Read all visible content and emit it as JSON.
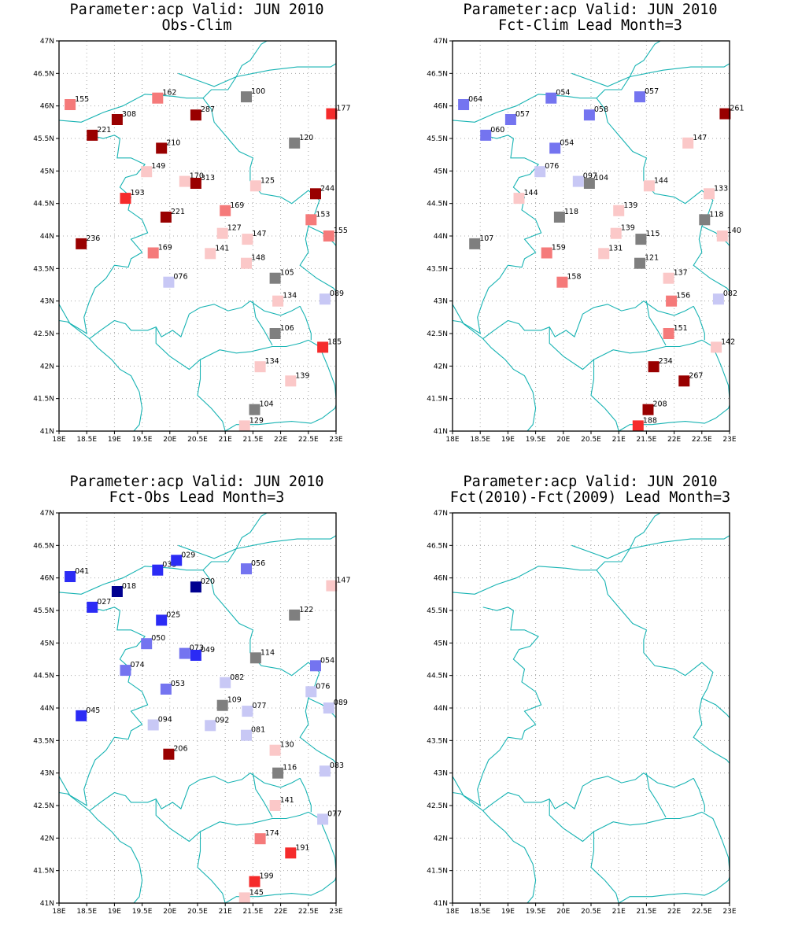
{
  "coastline_color": "#17b3b3",
  "color_scale": {
    "dark_blue": "#000090",
    "blue": "#2b2bf5",
    "mid_blue": "#7474f0",
    "light_blue": "#c8c8f5",
    "gray": "#7f7f7f",
    "light_red": "#fbc8c8",
    "mid_red": "#f57a7a",
    "red": "#f52b2b",
    "dark_red": "#990000"
  },
  "axes": {
    "lon_ticks": [
      "18E",
      "18.5E",
      "19E",
      "19.5E",
      "20E",
      "20.5E",
      "21E",
      "21.5E",
      "22E",
      "22.5E",
      "23E"
    ],
    "lat_ticks": [
      "41N",
      "41.5N",
      "42N",
      "42.5N",
      "43N",
      "43.5N",
      "44N",
      "44.5N",
      "45N",
      "45.5N",
      "46N",
      "46.5N",
      "47N"
    ],
    "lon_range": [
      18,
      23
    ],
    "lat_range": [
      41,
      47
    ]
  },
  "panels": [
    {
      "title1": "Parameter:acp Valid: JUN 2010",
      "title2": "Obs-Clim",
      "stations": [
        {
          "lon": 18.2,
          "lat": 46.02,
          "label": "155",
          "color": "mid_red"
        },
        {
          "lon": 19.78,
          "lat": 46.12,
          "label": "162",
          "color": "mid_red"
        },
        {
          "lon": 21.38,
          "lat": 46.14,
          "label": "100",
          "color": "gray"
        },
        {
          "lon": 22.92,
          "lat": 45.88,
          "label": "177",
          "color": "red"
        },
        {
          "lon": 19.05,
          "lat": 45.79,
          "label": "308",
          "color": "dark_red"
        },
        {
          "lon": 20.47,
          "lat": 45.86,
          "label": "287",
          "color": "dark_red"
        },
        {
          "lon": 18.6,
          "lat": 45.55,
          "label": "221",
          "color": "dark_red"
        },
        {
          "lon": 19.85,
          "lat": 45.35,
          "label": "210",
          "color": "dark_red"
        },
        {
          "lon": 22.25,
          "lat": 45.43,
          "label": "120",
          "color": "gray"
        },
        {
          "lon": 19.58,
          "lat": 44.99,
          "label": "149",
          "color": "light_red"
        },
        {
          "lon": 20.27,
          "lat": 44.84,
          "label": "170",
          "color": "light_red"
        },
        {
          "lon": 20.47,
          "lat": 44.81,
          "label": "313",
          "color": "dark_red"
        },
        {
          "lon": 21.55,
          "lat": 44.77,
          "label": "125",
          "color": "light_red"
        },
        {
          "lon": 22.63,
          "lat": 44.65,
          "label": "244",
          "color": "dark_red"
        },
        {
          "lon": 19.2,
          "lat": 44.58,
          "label": "193",
          "color": "red"
        },
        {
          "lon": 19.93,
          "lat": 44.29,
          "label": "221",
          "color": "dark_red"
        },
        {
          "lon": 21.0,
          "lat": 44.39,
          "label": "169",
          "color": "mid_red"
        },
        {
          "lon": 22.55,
          "lat": 44.25,
          "label": "153",
          "color": "mid_red"
        },
        {
          "lon": 22.87,
          "lat": 44.0,
          "label": "155",
          "color": "mid_red"
        },
        {
          "lon": 20.95,
          "lat": 44.04,
          "label": "127",
          "color": "light_red"
        },
        {
          "lon": 21.4,
          "lat": 43.95,
          "label": "147",
          "color": "light_red"
        },
        {
          "lon": 18.4,
          "lat": 43.88,
          "label": "236",
          "color": "dark_red"
        },
        {
          "lon": 19.7,
          "lat": 43.74,
          "label": "169",
          "color": "mid_red"
        },
        {
          "lon": 20.73,
          "lat": 43.73,
          "label": "141",
          "color": "light_red"
        },
        {
          "lon": 21.38,
          "lat": 43.58,
          "label": "148",
          "color": "light_red"
        },
        {
          "lon": 19.98,
          "lat": 43.29,
          "label": "076",
          "color": "light_blue"
        },
        {
          "lon": 21.9,
          "lat": 43.35,
          "label": "105",
          "color": "gray"
        },
        {
          "lon": 21.95,
          "lat": 43.0,
          "label": "134",
          "color": "light_red"
        },
        {
          "lon": 22.8,
          "lat": 43.03,
          "label": "089",
          "color": "light_blue"
        },
        {
          "lon": 21.9,
          "lat": 42.5,
          "label": "106",
          "color": "gray"
        },
        {
          "lon": 22.76,
          "lat": 42.29,
          "label": "185",
          "color": "red"
        },
        {
          "lon": 21.63,
          "lat": 41.99,
          "label": "134",
          "color": "light_red"
        },
        {
          "lon": 22.18,
          "lat": 41.77,
          "label": "139",
          "color": "light_red"
        },
        {
          "lon": 21.53,
          "lat": 41.33,
          "label": "104",
          "color": "gray"
        },
        {
          "lon": 21.35,
          "lat": 41.08,
          "label": "129",
          "color": "light_red"
        }
      ]
    },
    {
      "title1": "Parameter:acp Valid: JUN 2010",
      "title2": "Fct-Clim Lead Month=3",
      "stations": [
        {
          "lon": 18.2,
          "lat": 46.02,
          "label": "064",
          "color": "mid_blue"
        },
        {
          "lon": 19.78,
          "lat": 46.12,
          "label": "054",
          "color": "mid_blue"
        },
        {
          "lon": 21.38,
          "lat": 46.14,
          "label": "057",
          "color": "mid_blue"
        },
        {
          "lon": 22.92,
          "lat": 45.88,
          "label": "261",
          "color": "dark_red"
        },
        {
          "lon": 19.05,
          "lat": 45.79,
          "label": "057",
          "color": "mid_blue"
        },
        {
          "lon": 20.47,
          "lat": 45.86,
          "label": "058",
          "color": "mid_blue"
        },
        {
          "lon": 18.6,
          "lat": 45.55,
          "label": "060",
          "color": "mid_blue"
        },
        {
          "lon": 19.85,
          "lat": 45.35,
          "label": "054",
          "color": "mid_blue"
        },
        {
          "lon": 22.25,
          "lat": 45.43,
          "label": "147",
          "color": "light_red"
        },
        {
          "lon": 19.58,
          "lat": 44.99,
          "label": "076",
          "color": "light_blue"
        },
        {
          "lon": 20.27,
          "lat": 44.84,
          "label": "097",
          "color": "light_blue"
        },
        {
          "lon": 20.47,
          "lat": 44.81,
          "label": "104",
          "color": "gray"
        },
        {
          "lon": 21.55,
          "lat": 44.77,
          "label": "144",
          "color": "light_red"
        },
        {
          "lon": 22.63,
          "lat": 44.65,
          "label": "133",
          "color": "light_red"
        },
        {
          "lon": 19.2,
          "lat": 44.58,
          "label": "144",
          "color": "light_red"
        },
        {
          "lon": 19.93,
          "lat": 44.29,
          "label": "118",
          "color": "gray"
        },
        {
          "lon": 21.0,
          "lat": 44.39,
          "label": "139",
          "color": "light_red"
        },
        {
          "lon": 22.55,
          "lat": 44.25,
          "label": "118",
          "color": "gray"
        },
        {
          "lon": 22.87,
          "lat": 44.0,
          "label": "140",
          "color": "light_red"
        },
        {
          "lon": 20.95,
          "lat": 44.04,
          "label": "139",
          "color": "light_red"
        },
        {
          "lon": 21.4,
          "lat": 43.95,
          "label": "115",
          "color": "gray"
        },
        {
          "lon": 18.4,
          "lat": 43.88,
          "label": "107",
          "color": "gray"
        },
        {
          "lon": 19.7,
          "lat": 43.74,
          "label": "159",
          "color": "mid_red"
        },
        {
          "lon": 20.73,
          "lat": 43.73,
          "label": "131",
          "color": "light_red"
        },
        {
          "lon": 21.38,
          "lat": 43.58,
          "label": "121",
          "color": "gray"
        },
        {
          "lon": 19.98,
          "lat": 43.29,
          "label": "158",
          "color": "mid_red"
        },
        {
          "lon": 21.9,
          "lat": 43.35,
          "label": "137",
          "color": "light_red"
        },
        {
          "lon": 21.95,
          "lat": 43.0,
          "label": "156",
          "color": "mid_red"
        },
        {
          "lon": 22.8,
          "lat": 43.03,
          "label": "082",
          "color": "light_blue"
        },
        {
          "lon": 21.9,
          "lat": 42.5,
          "label": "151",
          "color": "mid_red"
        },
        {
          "lon": 22.76,
          "lat": 42.29,
          "label": "142",
          "color": "light_red"
        },
        {
          "lon": 21.63,
          "lat": 41.99,
          "label": "234",
          "color": "dark_red"
        },
        {
          "lon": 22.18,
          "lat": 41.77,
          "label": "267",
          "color": "dark_red"
        },
        {
          "lon": 21.53,
          "lat": 41.33,
          "label": "208",
          "color": "dark_red"
        },
        {
          "lon": 21.35,
          "lat": 41.08,
          "label": "188",
          "color": "red"
        }
      ]
    },
    {
      "title1": "Parameter:acp Valid: JUN 2010",
      "title2": "Fct-Obs Lead Month=3",
      "stations": [
        {
          "lon": 18.2,
          "lat": 46.02,
          "label": "041",
          "color": "blue"
        },
        {
          "lon": 19.78,
          "lat": 46.12,
          "label": "033",
          "color": "blue"
        },
        {
          "lon": 20.12,
          "lat": 46.27,
          "label": "029",
          "color": "blue"
        },
        {
          "lon": 21.38,
          "lat": 46.14,
          "label": "056",
          "color": "mid_blue"
        },
        {
          "lon": 22.92,
          "lat": 45.88,
          "label": "147",
          "color": "light_red"
        },
        {
          "lon": 19.05,
          "lat": 45.79,
          "label": "018",
          "color": "dark_blue"
        },
        {
          "lon": 20.47,
          "lat": 45.86,
          "label": "020",
          "color": "dark_blue"
        },
        {
          "lon": 18.6,
          "lat": 45.55,
          "label": "027",
          "color": "blue"
        },
        {
          "lon": 19.85,
          "lat": 45.35,
          "label": "025",
          "color": "blue"
        },
        {
          "lon": 22.25,
          "lat": 45.43,
          "label": "122",
          "color": "gray"
        },
        {
          "lon": 19.58,
          "lat": 44.99,
          "label": "050",
          "color": "mid_blue"
        },
        {
          "lon": 20.27,
          "lat": 44.84,
          "label": "073",
          "color": "mid_blue"
        },
        {
          "lon": 20.47,
          "lat": 44.81,
          "label": "049",
          "color": "blue"
        },
        {
          "lon": 21.55,
          "lat": 44.77,
          "label": "114",
          "color": "gray"
        },
        {
          "lon": 22.63,
          "lat": 44.65,
          "label": "054",
          "color": "mid_blue"
        },
        {
          "lon": 19.2,
          "lat": 44.58,
          "label": "074",
          "color": "mid_blue"
        },
        {
          "lon": 19.93,
          "lat": 44.29,
          "label": "053",
          "color": "mid_blue"
        },
        {
          "lon": 21.0,
          "lat": 44.39,
          "label": "082",
          "color": "light_blue"
        },
        {
          "lon": 22.55,
          "lat": 44.25,
          "label": "076",
          "color": "light_blue"
        },
        {
          "lon": 22.87,
          "lat": 44.0,
          "label": "089",
          "color": "light_blue"
        },
        {
          "lon": 20.95,
          "lat": 44.04,
          "label": "109",
          "color": "gray"
        },
        {
          "lon": 21.4,
          "lat": 43.95,
          "label": "077",
          "color": "light_blue"
        },
        {
          "lon": 18.4,
          "lat": 43.88,
          "label": "045",
          "color": "blue"
        },
        {
          "lon": 19.7,
          "lat": 43.74,
          "label": "094",
          "color": "light_blue"
        },
        {
          "lon": 20.73,
          "lat": 43.73,
          "label": "092",
          "color": "light_blue"
        },
        {
          "lon": 21.38,
          "lat": 43.58,
          "label": "081",
          "color": "light_blue"
        },
        {
          "lon": 19.98,
          "lat": 43.29,
          "label": "206",
          "color": "dark_red"
        },
        {
          "lon": 21.9,
          "lat": 43.35,
          "label": "130",
          "color": "light_red"
        },
        {
          "lon": 21.95,
          "lat": 43.0,
          "label": "116",
          "color": "gray"
        },
        {
          "lon": 22.8,
          "lat": 43.03,
          "label": "083",
          "color": "light_blue"
        },
        {
          "lon": 21.9,
          "lat": 42.5,
          "label": "141",
          "color": "light_red"
        },
        {
          "lon": 22.76,
          "lat": 42.29,
          "label": "077",
          "color": "light_blue"
        },
        {
          "lon": 21.63,
          "lat": 41.99,
          "label": "174",
          "color": "mid_red"
        },
        {
          "lon": 22.18,
          "lat": 41.77,
          "label": "191",
          "color": "red"
        },
        {
          "lon": 21.53,
          "lat": 41.33,
          "label": "199",
          "color": "red"
        },
        {
          "lon": 21.35,
          "lat": 41.08,
          "label": "145",
          "color": "light_red"
        }
      ]
    },
    {
      "title1": "Parameter:acp Valid: JUN 2010",
      "title2": "Fct(2010)-Fct(2009) Lead Month=3",
      "stations": []
    }
  ]
}
